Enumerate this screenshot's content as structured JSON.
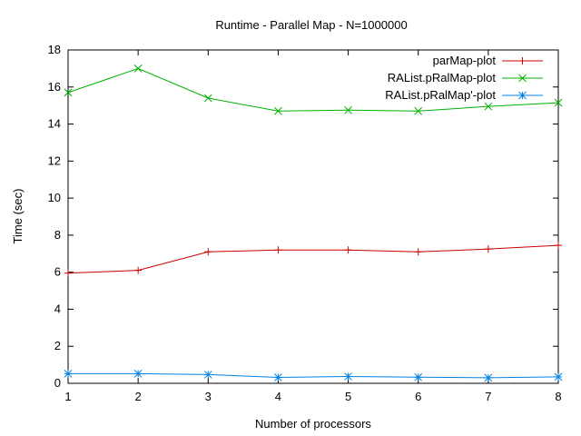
{
  "chart_data": {
    "type": "line",
    "title": "Runtime - Parallel Map - N=1000000",
    "xlabel": "Number of processors",
    "ylabel": "Time (sec)",
    "xlim": [
      1,
      8
    ],
    "ylim": [
      0,
      18
    ],
    "x_ticks": [
      "1",
      "2",
      "3",
      "4",
      "5",
      "6",
      "7",
      "8"
    ],
    "y_ticks": [
      "0",
      "2",
      "4",
      "6",
      "8",
      "10",
      "12",
      "14",
      "16",
      "18"
    ],
    "grid": false,
    "legend_position": "top-right",
    "x": [
      1,
      2,
      3,
      4,
      5,
      6,
      7,
      8
    ],
    "series": [
      {
        "name": "parMap-plot",
        "color": "#cc0000",
        "marker": "plus",
        "values": [
          5.95,
          6.1,
          7.1,
          7.2,
          7.2,
          7.1,
          7.25,
          7.45
        ]
      },
      {
        "name": "RAList.pRalMap-plot",
        "color": "#00b000",
        "marker": "cross",
        "values": [
          15.7,
          17.0,
          15.4,
          14.7,
          14.75,
          14.7,
          14.95,
          15.15
        ]
      },
      {
        "name": "RAList.pRalMap'-plot",
        "color": "#0080e0",
        "marker": "star",
        "values": [
          0.52,
          0.52,
          0.47,
          0.32,
          0.37,
          0.33,
          0.3,
          0.35
        ]
      }
    ]
  }
}
